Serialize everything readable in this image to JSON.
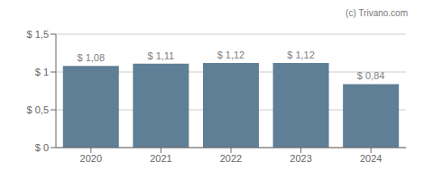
{
  "chart_data": {
    "type": "bar",
    "categories": [
      "2020",
      "2021",
      "2022",
      "2023",
      "2024"
    ],
    "values": [
      1.08,
      1.11,
      1.12,
      1.12,
      0.84
    ],
    "value_labels": [
      "$ 1,08",
      "$ 1,11",
      "$ 1,12",
      "$ 1,12",
      "$ 0,84"
    ],
    "color": "#5f7f96",
    "ylim": [
      0,
      1.5
    ],
    "yticks": [
      {
        "value": 0,
        "label": "$ 0"
      },
      {
        "value": 0.5,
        "label": "$ 0,5"
      },
      {
        "value": 1.0,
        "label": "$ 1"
      },
      {
        "value": 1.5,
        "label": "$ 1,5"
      }
    ],
    "grid": true,
    "annotations": [
      "(c) Trivano.com"
    ]
  }
}
